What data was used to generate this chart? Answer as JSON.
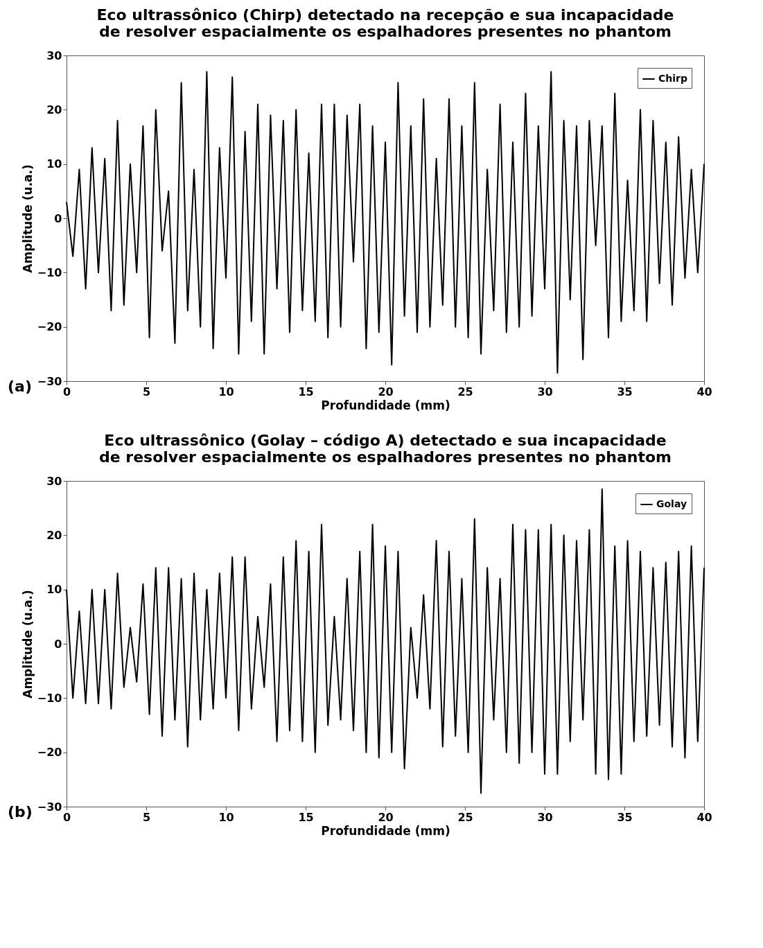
{
  "chart_data": [
    {
      "type": "line",
      "title": "Eco ultrassônico (Chirp) detectado na recepção e sua incapacidade\nde resolver espacialmente os espalhadores presentes no phantom",
      "xlabel": "Profundidade (mm)",
      "ylabel": "Amplitude (u.a.)",
      "annotations": [
        "(a)"
      ],
      "xlim": [
        0,
        40
      ],
      "ylim": [
        -30,
        30
      ],
      "xticks": [
        0,
        5,
        10,
        15,
        20,
        25,
        30,
        35,
        40
      ],
      "yticks": [
        -30,
        -20,
        -10,
        0,
        10,
        20,
        30
      ],
      "grid": false,
      "legend": "top right",
      "line_style": "solid",
      "x": [
        0,
        0.4,
        0.8,
        1.2,
        1.6,
        2.0,
        2.4,
        2.8,
        3.2,
        3.6,
        4.0,
        4.4,
        4.8,
        5.2,
        5.6,
        6.0,
        6.4,
        6.8,
        7.2,
        7.6,
        8.0,
        8.4,
        8.8,
        9.2,
        9.6,
        10.0,
        10.4,
        10.8,
        11.2,
        11.6,
        12.0,
        12.4,
        12.8,
        13.2,
        13.6,
        14.0,
        14.4,
        14.8,
        15.2,
        15.6,
        16.0,
        16.4,
        16.8,
        17.2,
        17.6,
        18.0,
        18.4,
        18.8,
        19.2,
        19.6,
        20.0,
        20.4,
        20.8,
        21.2,
        21.6,
        22.0,
        22.4,
        22.8,
        23.2,
        23.6,
        24.0,
        24.4,
        24.8,
        25.2,
        25.6,
        26.0,
        26.4,
        26.8,
        27.2,
        27.6,
        28.0,
        28.4,
        28.8,
        29.2,
        29.6,
        30.0,
        30.4,
        30.8,
        31.2,
        31.6,
        32.0,
        32.4,
        32.8,
        33.2,
        33.6,
        34.0,
        34.4,
        34.8,
        35.2,
        35.6,
        36.0,
        36.4,
        36.8,
        37.2,
        37.6,
        38.0,
        38.4,
        38.8,
        39.2,
        39.6,
        40.0
      ],
      "series": [
        {
          "name": "Chirp",
          "color": "#000000",
          "values": [
            3,
            -7,
            9,
            -13,
            13,
            -10,
            11,
            -17,
            18,
            -16,
            10,
            -10,
            17,
            -22,
            20,
            -6,
            5,
            -23,
            25,
            -17,
            9,
            -20,
            27,
            -24,
            13,
            -11,
            26,
            -25,
            16,
            -19,
            21,
            -25,
            19,
            -13,
            18,
            -21,
            20,
            -17,
            12,
            -19,
            21,
            -22,
            21,
            -20,
            19,
            -8,
            21,
            -24,
            17,
            -21,
            14,
            -27,
            25,
            -18,
            17,
            -21,
            22,
            -20,
            11,
            -16,
            22,
            -20,
            17,
            -22,
            25,
            -25,
            9,
            -17,
            21,
            -21,
            14,
            -20,
            23,
            -18,
            17,
            -13,
            27,
            -28.5,
            18,
            -15,
            17,
            -26,
            18,
            -5,
            17,
            -22,
            23,
            -19,
            7,
            -17,
            20,
            -19,
            18,
            -12,
            14,
            -16,
            15,
            -11,
            9,
            -10,
            10
          ]
        }
      ]
    },
    {
      "type": "line",
      "title": "Eco ultrassônico (Golay – código A) detectado e sua incapacidade\nde resolver espacialmente os espalhadores presentes no phantom",
      "xlabel": "Profundidade (mm)",
      "ylabel": "Amplitude (u.a.)",
      "annotations": [
        "(b)"
      ],
      "xlim": [
        0,
        40
      ],
      "ylim": [
        -30,
        30
      ],
      "xticks": [
        0,
        5,
        10,
        15,
        20,
        25,
        30,
        35,
        40
      ],
      "yticks": [
        -30,
        -20,
        -10,
        0,
        10,
        20,
        30
      ],
      "grid": false,
      "legend": "top right",
      "line_style": "solid",
      "x": [
        0,
        0.4,
        0.8,
        1.2,
        1.6,
        2.0,
        2.4,
        2.8,
        3.2,
        3.6,
        4.0,
        4.4,
        4.8,
        5.2,
        5.6,
        6.0,
        6.4,
        6.8,
        7.2,
        7.6,
        8.0,
        8.4,
        8.8,
        9.2,
        9.6,
        10.0,
        10.4,
        10.8,
        11.2,
        11.6,
        12.0,
        12.4,
        12.8,
        13.2,
        13.6,
        14.0,
        14.4,
        14.8,
        15.2,
        15.6,
        16.0,
        16.4,
        16.8,
        17.2,
        17.6,
        18.0,
        18.4,
        18.8,
        19.2,
        19.6,
        20.0,
        20.4,
        20.8,
        21.2,
        21.6,
        22.0,
        22.4,
        22.8,
        23.2,
        23.6,
        24.0,
        24.4,
        24.8,
        25.2,
        25.6,
        26.0,
        26.4,
        26.8,
        27.2,
        27.6,
        28.0,
        28.4,
        28.8,
        29.2,
        29.6,
        30.0,
        30.4,
        30.8,
        31.2,
        31.6,
        32.0,
        32.4,
        32.8,
        33.2,
        33.6,
        34.0,
        34.4,
        34.8,
        35.2,
        35.6,
        36.0,
        36.4,
        36.8,
        37.2,
        37.6,
        38.0,
        38.4,
        38.8,
        39.2,
        39.6,
        40.0
      ],
      "series": [
        {
          "name": "Golay",
          "color": "#000000",
          "values": [
            10,
            -10,
            6,
            -11,
            10,
            -11,
            10,
            -12,
            13,
            -8,
            3,
            -7,
            11,
            -13,
            14,
            -17,
            14,
            -14,
            12,
            -19,
            13,
            -14,
            10,
            -12,
            13,
            -10,
            16,
            -16,
            16,
            -12,
            5,
            -8,
            11,
            -18,
            16,
            -16,
            19,
            -18,
            17,
            -20,
            22,
            -15,
            5,
            -14,
            12,
            -16,
            17,
            -20,
            22,
            -21,
            18,
            -20,
            17,
            -23,
            3,
            -10,
            9,
            -12,
            19,
            -19,
            17,
            -17,
            12,
            -20,
            23,
            -27.5,
            14,
            -14,
            12,
            -20,
            22,
            -22,
            21,
            -20,
            21,
            -24,
            22,
            -24,
            20,
            -18,
            19,
            -14,
            21,
            -24,
            28.5,
            -25,
            18,
            -24,
            19,
            -18,
            17,
            -17,
            14,
            -15,
            15,
            -19,
            17,
            -21,
            18,
            -18,
            14
          ]
        }
      ]
    }
  ]
}
